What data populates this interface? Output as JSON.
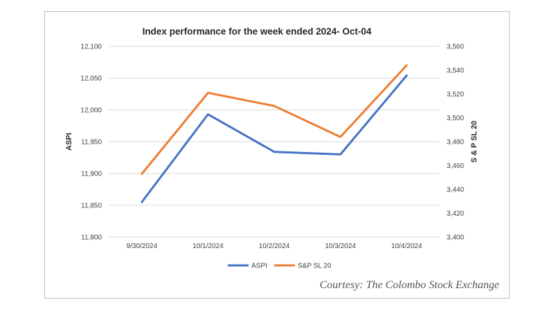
{
  "colors": {
    "aspi": "#4472c4",
    "snp": "#ed7d31",
    "grid": "#d9d9d9"
  },
  "credit": "Courtesy: The Colombo Stock Exchange",
  "chart_data": {
    "type": "line",
    "title": "Index performance for the week ended 2024- Oct-04",
    "categories": [
      "9/30/2024",
      "10/1/2024",
      "10/2/2024",
      "10/3/2024",
      "10/4/2024"
    ],
    "ylabel": "ASPI",
    "y2label": "S & P SL 20",
    "ylim": [
      11800,
      12100
    ],
    "y2lim": [
      3400,
      3560
    ],
    "yticks": [
      "11,800",
      "11,850",
      "11,900",
      "11,950",
      "12,000",
      "12,050",
      "12,100"
    ],
    "y2ticks": [
      "3,400",
      "3,420",
      "3,440",
      "3,460",
      "3,480",
      "3,500",
      "3,520",
      "3,540",
      "3,560"
    ],
    "grid": true,
    "legend": "bottom",
    "series": [
      {
        "name": "ASPI",
        "axis": "left",
        "values": [
          11855,
          11993,
          11934,
          11930,
          12054
        ]
      },
      {
        "name": "S&P SL 20",
        "axis": "right",
        "values": [
          3453,
          3521,
          3510,
          3484,
          3544
        ]
      }
    ]
  }
}
